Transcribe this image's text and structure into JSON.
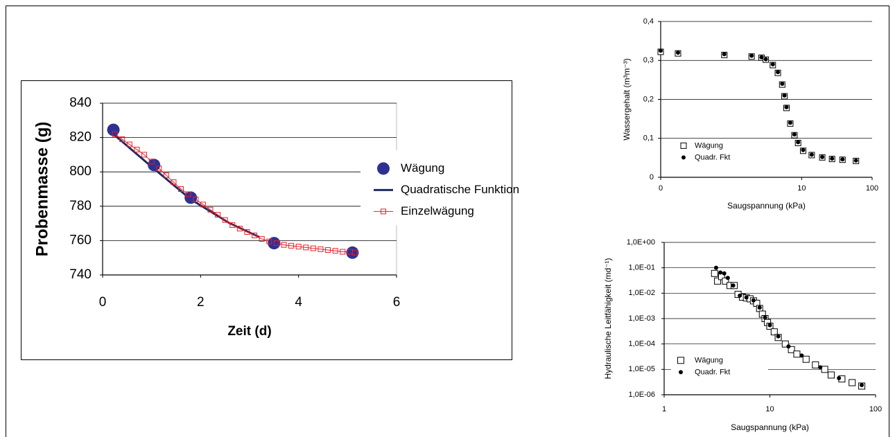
{
  "chart_data": [
    {
      "type": "scatter",
      "x_label": "Zeit (d)",
      "y_label": "Probenmasse (g)",
      "xlim": [
        0,
        6
      ],
      "xticks": [
        0,
        2,
        4,
        6
      ],
      "ylim": [
        740,
        840
      ],
      "yticks": [
        740,
        760,
        780,
        800,
        820,
        840
      ],
      "grid": true,
      "legend": "right",
      "series": [
        {
          "name": "Wägung",
          "color": "#2e3192",
          "marker": "circle",
          "line": false,
          "x": [
            0.22,
            1.05,
            1.8,
            3.5,
            5.1
          ],
          "values": [
            824.5,
            804,
            785,
            758.5,
            753
          ]
        },
        {
          "name": "Quadratische Funktion",
          "color": "#1f2a5e",
          "marker": "none",
          "line": true,
          "x": [
            0.22,
            1.0,
            1.8,
            2.6,
            3.2
          ],
          "values": [
            822,
            803,
            784,
            770,
            762
          ]
        },
        {
          "name": "Einzelwägung",
          "color": "#ee1c24",
          "marker": "square",
          "line": true,
          "x": [
            0.25,
            0.4,
            0.55,
            0.7,
            0.85,
            1.0,
            1.15,
            1.3,
            1.45,
            1.6,
            1.75,
            1.9,
            2.05,
            2.2,
            2.35,
            2.5,
            2.65,
            2.8,
            2.95,
            3.1,
            3.25,
            3.4,
            3.55,
            3.7,
            3.85,
            4.0,
            4.15,
            4.3,
            4.45,
            4.6,
            4.75,
            4.9,
            5.05,
            5.15
          ],
          "values": [
            822,
            819,
            816,
            813,
            810,
            806,
            802,
            798,
            794,
            790,
            787,
            784,
            781,
            778,
            775,
            772,
            769,
            767,
            765,
            763,
            761,
            759.5,
            758.5,
            757.5,
            757,
            756.5,
            756,
            755.5,
            755,
            754.5,
            754,
            753.5,
            753.5,
            753
          ]
        }
      ]
    },
    {
      "type": "scatter",
      "x_label": "Saugspannung (kPa)",
      "y_label": "Wassergehalt (m³m⁻³)",
      "xscale": "log",
      "xlim": [
        0.1,
        100
      ],
      "xticks": [
        {
          "value": 0.1,
          "label": "0"
        },
        10,
        100
      ],
      "ylim": [
        0,
        0.4
      ],
      "yticks": [
        0,
        {
          "value": 0.1,
          "label": "0,1"
        },
        {
          "value": 0.2,
          "label": "0,2"
        },
        {
          "value": 0.3,
          "label": "0,3"
        },
        {
          "value": 0.4,
          "label": "0,4"
        }
      ],
      "grid": true,
      "legend": "lower left",
      "series": [
        {
          "name": "Wägung",
          "color": "#000000",
          "marker": "square",
          "line": false,
          "x": [
            0.1,
            0.176,
            0.8,
            1.95,
            2.7,
            3.1,
            3.9,
            4.6,
            5.3,
            5.7,
            6.1,
            6.9,
            7.9,
            8.9,
            10.5,
            13.9,
            19.6,
            27,
            38,
            59
          ],
          "values": [
            0.322,
            0.318,
            0.314,
            0.31,
            0.307,
            0.302,
            0.288,
            0.268,
            0.238,
            0.208,
            0.178,
            0.138,
            0.108,
            0.088,
            0.068,
            0.057,
            0.051,
            0.047,
            0.045,
            0.042
          ]
        },
        {
          "name": "Quadr. Fkt",
          "color": "#000000",
          "marker": "dot",
          "line": false,
          "x": [
            0.1,
            0.176,
            0.8,
            1.95,
            2.7,
            3.1,
            3.9,
            4.6,
            5.3,
            5.7,
            6.1,
            6.9,
            7.9,
            8.9,
            10.5,
            13.9,
            19.6,
            27,
            38,
            59
          ],
          "values": [
            0.325,
            0.32,
            0.316,
            0.312,
            0.308,
            0.303,
            0.29,
            0.27,
            0.24,
            0.21,
            0.18,
            0.14,
            0.11,
            0.09,
            0.07,
            0.058,
            0.052,
            0.048,
            0.046,
            0.043
          ]
        }
      ]
    },
    {
      "type": "scatter",
      "x_label": "Saugspannung (kPa)",
      "y_label": "Hydraulische Leitfähigkeit (md⁻¹)",
      "xscale": "log",
      "yscale": "log",
      "xlim": [
        1,
        100
      ],
      "xticks": [
        1,
        10,
        100
      ],
      "ylim": [
        1e-06,
        1
      ],
      "yticks": [
        {
          "value": 1e-06,
          "label": "1,0E-06"
        },
        {
          "value": 1e-05,
          "label": "1,0E-05"
        },
        {
          "value": 0.0001,
          "label": "1,0E-04"
        },
        {
          "value": 0.001,
          "label": "1,0E-03"
        },
        {
          "value": 0.01,
          "label": "1,0E-02"
        },
        {
          "value": 0.1,
          "label": "1,0E-01"
        },
        {
          "value": 1,
          "label": "1,0E+00"
        }
      ],
      "grid": true,
      "legend": "lower left",
      "series": [
        {
          "name": "Wägung",
          "color": "#000000",
          "marker": "square",
          "line": false,
          "x": [
            3.0,
            3.2,
            3.5,
            3.8,
            4.2,
            4.6,
            5.0,
            5.5,
            6.0,
            6.5,
            7.0,
            7.5,
            8.0,
            8.5,
            9.0,
            9.5,
            10,
            11,
            12,
            14,
            16,
            18,
            22,
            27,
            33,
            38,
            48,
            60,
            74
          ],
          "values": [
            0.06,
            0.03,
            0.045,
            0.03,
            0.02,
            0.02,
            0.009,
            0.007,
            0.0065,
            0.006,
            0.005,
            0.004,
            0.0025,
            0.0015,
            0.001,
            0.0007,
            0.0005,
            0.0003,
            0.00018,
            0.0001,
            6e-05,
            4e-05,
            2.5e-05,
            1.5e-05,
            1e-05,
            6e-06,
            4.2e-06,
            3e-06,
            2.2e-06
          ]
        },
        {
          "name": "Quadr. Fkt",
          "color": "#000000",
          "marker": "dot",
          "line": false,
          "x": [
            3.1,
            3.4,
            3.7,
            4.0,
            4.5,
            5.2,
            6.0,
            7.0,
            8.0,
            9.0,
            10,
            12,
            15,
            20,
            30,
            45,
            74
          ],
          "values": [
            0.1,
            0.065,
            0.06,
            0.04,
            0.02,
            0.008,
            0.0068,
            0.0052,
            0.0027,
            0.0011,
            0.00055,
            0.0002,
            8e-05,
            3.5e-05,
            1.2e-05,
            4.5e-06,
            2.4e-06
          ]
        }
      ]
    }
  ]
}
